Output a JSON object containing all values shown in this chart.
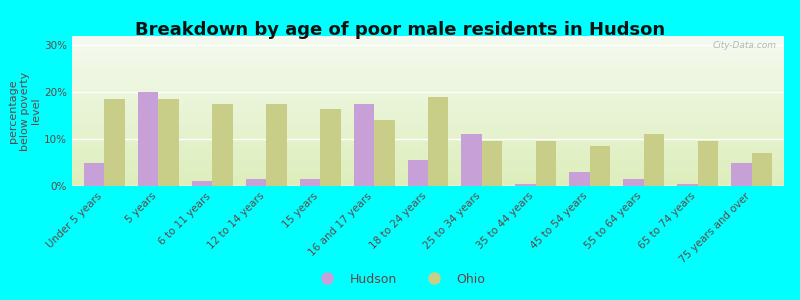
{
  "title": "Breakdown by age of poor male residents in Hudson",
  "ylabel": "percentage\nbelow poverty\nlevel",
  "categories": [
    "Under 5 years",
    "5 years",
    "6 to 11 years",
    "12 to 14 years",
    "15 years",
    "16 and 17 years",
    "18 to 24 years",
    "25 to 34 years",
    "35 to 44 years",
    "45 to 54 years",
    "55 to 64 years",
    "65 to 74 years",
    "75 years and over"
  ],
  "hudson_values": [
    5,
    20,
    1,
    1.5,
    1.5,
    17.5,
    5.5,
    11,
    0.5,
    3,
    1.5,
    0.5,
    5
  ],
  "ohio_values": [
    18.5,
    18.5,
    17.5,
    17.5,
    16.5,
    14,
    19,
    9.5,
    9.5,
    8.5,
    11,
    9.5,
    7
  ],
  "hudson_color": "#c8a0d8",
  "ohio_color": "#c8ce88",
  "background_top": "#f5faf0",
  "background_bottom": "#ddeebb",
  "ylim": [
    0,
    32
  ],
  "yticks": [
    0,
    10,
    20,
    30
  ],
  "ytick_labels": [
    "0%",
    "10%",
    "20%",
    "30%"
  ],
  "bar_width": 0.38,
  "title_fontsize": 13,
  "tick_label_fontsize": 7.5,
  "ylabel_fontsize": 8,
  "legend_fontsize": 9,
  "outer_bg": "#00ffff",
  "text_color": "#664444",
  "watermark": "City-Data.com"
}
